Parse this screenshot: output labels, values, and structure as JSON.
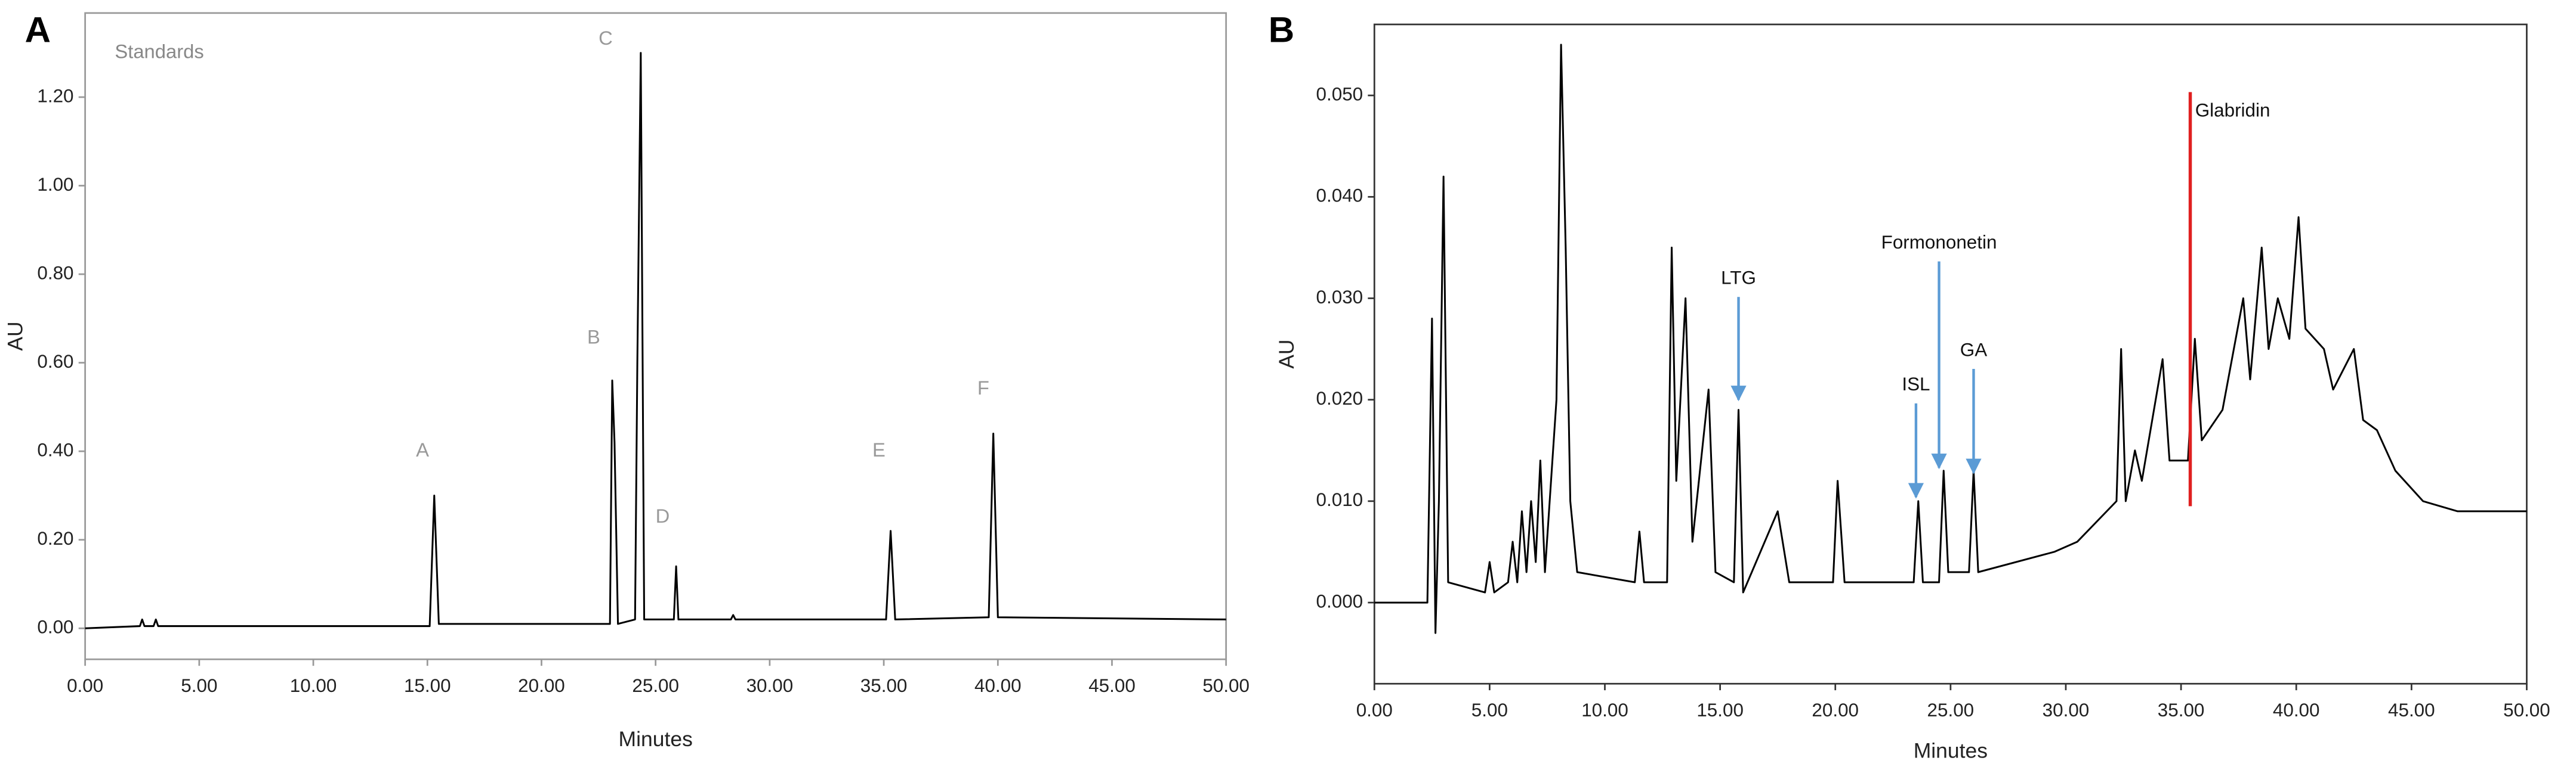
{
  "chart_data": [
    {
      "type": "line",
      "label": "A",
      "xlabel": "Minutes",
      "ylabel": "AU",
      "color": "#000000",
      "axis_color": "#999999",
      "x": [
        0,
        2.4,
        2.5,
        2.6,
        3.0,
        3.1,
        3.2,
        15.1,
        15.3,
        15.5,
        23.0,
        23.1,
        23.2,
        23.35,
        24.1,
        24.2,
        24.35,
        24.5,
        25.8,
        25.9,
        26.0,
        28.3,
        28.4,
        28.5,
        35.1,
        35.3,
        35.5,
        39.6,
        39.8,
        40.0,
        50
      ],
      "values": [
        0,
        0.005,
        0.02,
        0.005,
        0.005,
        0.02,
        0.005,
        0.005,
        0.3,
        0.01,
        0.01,
        0.56,
        0.42,
        0.01,
        0.02,
        0.6,
        1.3,
        0.02,
        0.02,
        0.14,
        0.02,
        0.02,
        0.03,
        0.02,
        0.02,
        0.22,
        0.02,
        0.025,
        0.44,
        0.025,
        0.02
      ],
      "xlim": [
        0,
        50
      ],
      "ylim": [
        -0.07,
        1.39
      ],
      "xticks": [
        {
          "value": 0,
          "label": "0.00"
        },
        {
          "value": 5,
          "label": "5.00"
        },
        {
          "value": 10,
          "label": "10.00"
        },
        {
          "value": 15,
          "label": "15.00"
        },
        {
          "value": 20,
          "label": "20.00"
        },
        {
          "value": 25,
          "label": "25.00"
        },
        {
          "value": 30,
          "label": "30.00"
        },
        {
          "value": 35,
          "label": "35.00"
        },
        {
          "value": 40,
          "label": "40.00"
        },
        {
          "value": 45,
          "label": "45.00"
        },
        {
          "value": 50,
          "label": "50.00"
        }
      ],
      "yticks": [
        {
          "value": 0,
          "label": "0.00"
        },
        {
          "value": 0.2,
          "label": "0.20"
        },
        {
          "value": 0.4,
          "label": "0.40"
        },
        {
          "value": 0.6,
          "label": "0.60"
        },
        {
          "value": 0.8,
          "label": "0.80"
        },
        {
          "value": 1,
          "label": "1.00"
        },
        {
          "value": 1.2,
          "label": "1.20"
        }
      ],
      "annotations": [
        {
          "text": "Standards",
          "x": 1.3,
          "y": 1.3,
          "color": "#888888"
        },
        {
          "text": "A",
          "x": 14.5,
          "y": 0.4,
          "color": "#999999"
        },
        {
          "text": "B",
          "x": 22.0,
          "y": 0.655,
          "color": "#999999"
        },
        {
          "text": "C",
          "x": 22.5,
          "y": 1.33,
          "color": "#999999"
        },
        {
          "text": "D",
          "x": 25.0,
          "y": 0.25,
          "color": "#999999"
        },
        {
          "text": "E",
          "x": 34.5,
          "y": 0.4,
          "color": "#999999"
        },
        {
          "text": "F",
          "x": 39.1,
          "y": 0.54,
          "color": "#999999"
        }
      ]
    },
    {
      "type": "line",
      "label": "B",
      "xlabel": "Minutes",
      "ylabel": "AU",
      "color": "#000000",
      "axis_color": "#333333",
      "x": [
        0,
        2.3,
        2.5,
        2.65,
        2.8,
        3.0,
        3.2,
        4.8,
        5.0,
        5.2,
        5.8,
        6.0,
        6.2,
        6.4,
        6.6,
        6.8,
        7.0,
        7.2,
        7.4,
        7.9,
        8.1,
        8.3,
        8.5,
        8.8,
        11.3,
        11.5,
        11.7,
        12.7,
        12.9,
        13.1,
        13.5,
        13.8,
        14.5,
        14.8,
        15.6,
        15.8,
        16.0,
        17.5,
        18.0,
        19.9,
        20.1,
        20.4,
        23.4,
        23.6,
        23.8,
        24.5,
        24.7,
        24.9,
        25.8,
        26.0,
        26.2,
        29.5,
        30.5,
        32.2,
        32.4,
        32.6,
        33.0,
        33.3,
        34.2,
        34.5,
        35.3,
        35.6,
        35.9,
        36.8,
        37.7,
        38.0,
        38.5,
        38.8,
        39.2,
        39.7,
        40.1,
        40.4,
        41.2,
        41.6,
        42.5,
        42.9,
        43.5,
        44.3,
        45.5,
        47,
        50
      ],
      "values": [
        0,
        0,
        0.028,
        -0.003,
        0.01,
        0.042,
        0.002,
        0.001,
        0.004,
        0.001,
        0.002,
        0.006,
        0.002,
        0.009,
        0.003,
        0.01,
        0.004,
        0.014,
        0.003,
        0.02,
        0.055,
        0.035,
        0.01,
        0.003,
        0.002,
        0.007,
        0.002,
        0.002,
        0.035,
        0.012,
        0.03,
        0.006,
        0.021,
        0.003,
        0.002,
        0.019,
        0.001,
        0.009,
        0.002,
        0.002,
        0.012,
        0.002,
        0.002,
        0.01,
        0.002,
        0.002,
        0.013,
        0.003,
        0.003,
        0.013,
        0.003,
        0.005,
        0.006,
        0.01,
        0.025,
        0.01,
        0.015,
        0.012,
        0.024,
        0.014,
        0.014,
        0.026,
        0.016,
        0.019,
        0.03,
        0.022,
        0.035,
        0.025,
        0.03,
        0.026,
        0.038,
        0.027,
        0.025,
        0.021,
        0.025,
        0.018,
        0.017,
        0.013,
        0.01,
        0.009,
        0.009
      ],
      "xlim": [
        0,
        50
      ],
      "ylim": [
        -0.008,
        0.057
      ],
      "xticks": [
        {
          "value": 0,
          "label": "0.00"
        },
        {
          "value": 5,
          "label": "5.00"
        },
        {
          "value": 10,
          "label": "10.00"
        },
        {
          "value": 15,
          "label": "15.00"
        },
        {
          "value": 20,
          "label": "20.00"
        },
        {
          "value": 25,
          "label": "25.00"
        },
        {
          "value": 30,
          "label": "30.00"
        },
        {
          "value": 35,
          "label": "35.00"
        },
        {
          "value": 40,
          "label": "40.00"
        },
        {
          "value": 45,
          "label": "45.00"
        },
        {
          "value": 50,
          "label": "50.00"
        }
      ],
      "yticks": [
        {
          "value": 0,
          "label": "0.000"
        },
        {
          "value": 0.01,
          "label": "0.010"
        },
        {
          "value": 0.02,
          "label": "0.020"
        },
        {
          "value": 0.03,
          "label": "0.030"
        },
        {
          "value": 0.04,
          "label": "0.040"
        },
        {
          "value": 0.05,
          "label": "0.050"
        }
      ],
      "annotations": [
        {
          "text": "LTG",
          "x": 15.8,
          "y": 0.02,
          "label_y": 0.0319,
          "color": "#5b9bd5"
        },
        {
          "text": "ISL",
          "x": 23.5,
          "y": 0.0104,
          "label_y": 0.0214,
          "color": "#5b9bd5"
        },
        {
          "text": "Formononetin",
          "x": 24.5,
          "y": 0.0133,
          "label_y": 0.0354,
          "color": "#5b9bd5"
        },
        {
          "text": "GA",
          "x": 26.0,
          "y": 0.0128,
          "label_y": 0.0248,
          "color": "#5b9bd5"
        },
        {
          "text": "Glabridin",
          "x": 35.4,
          "y": 0.0095,
          "label_y": 0.0484,
          "color": "#e02020"
        }
      ]
    }
  ]
}
